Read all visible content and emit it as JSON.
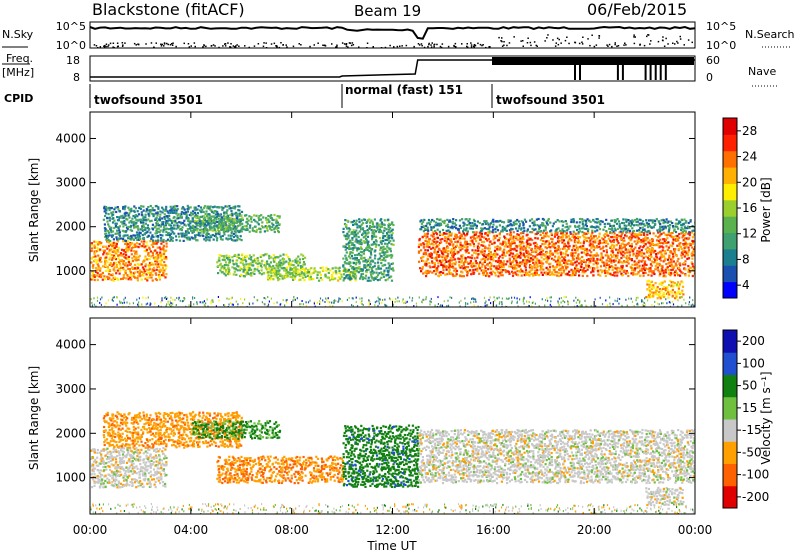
{
  "header": {
    "station": "Blackstone (fitACF)",
    "beam": "Beam 19",
    "date": "06/Feb/2015"
  },
  "aux": {
    "nsky_label": "N.Sky",
    "nsearch_label": "N.Search",
    "freq_label": "Freq.",
    "freq_unit": "[MHz]",
    "nave_label": "Nave",
    "cpid_label": "CPID",
    "noise_ticks": [
      "10^5",
      "10^0"
    ],
    "freq_ticks": [
      "18",
      "8"
    ],
    "nave_ticks": [
      "60",
      "0"
    ],
    "cpid_segments": [
      {
        "label": "twofsound 3501",
        "start": 0,
        "end": 10
      },
      {
        "label": "normal (fast) 151",
        "start": 10,
        "end": 16
      },
      {
        "label": "twofsound 3501",
        "start": 16,
        "end": 24
      }
    ]
  },
  "colorbars": {
    "power": {
      "label": "Power [dB]",
      "ticks": [
        "28",
        "24",
        "20",
        "16",
        "12",
        "8",
        "4"
      ],
      "colors": [
        "#0000ff",
        "#1a50b0",
        "#1b7f8f",
        "#3fa070",
        "#5ab24e",
        "#9bcf2e",
        "#ffee00",
        "#ffb000",
        "#ff7000",
        "#ff2000",
        "#e00000"
      ]
    },
    "velocity": {
      "label": "Velocity [m s⁻¹]",
      "ticks": [
        "200",
        "100",
        "50",
        "15",
        "-15",
        "-50",
        "-100",
        "-200"
      ],
      "colors": [
        "#1010b0",
        "#2050d0",
        "#108010",
        "#70c040",
        "#c8c8c8",
        "#ffa000",
        "#ff6000",
        "#e00000"
      ]
    }
  },
  "chart_data": [
    {
      "type": "heatmap",
      "title": "Power",
      "xlabel": "Time UT",
      "ylabel": "Slant Range [km]",
      "x_ticks": [
        "00:00",
        "04:00",
        "08:00",
        "12:00",
        "16:00",
        "20:00",
        "00:00"
      ],
      "y_ticks": [
        "1000",
        "2000",
        "3000",
        "4000"
      ],
      "xlim_hours": [
        0,
        24
      ],
      "ylim_km": [
        180,
        4600
      ],
      "colorbar_range_db": [
        0,
        32
      ],
      "scatter_bands": [
        {
          "t0": 0.0,
          "t1": 3.0,
          "r0": 800,
          "r1": 1700,
          "level": 24
        },
        {
          "t0": 0.5,
          "t1": 6.0,
          "r0": 1700,
          "r1": 2500,
          "level": 8
        },
        {
          "t0": 4.0,
          "t1": 7.5,
          "r0": 1900,
          "r1": 2300,
          "level": 12
        },
        {
          "t0": 5.0,
          "t1": 8.5,
          "r0": 900,
          "r1": 1400,
          "level": 14
        },
        {
          "t0": 7.0,
          "t1": 10.5,
          "r0": 800,
          "r1": 1100,
          "level": 16
        },
        {
          "t0": 10.0,
          "t1": 12.0,
          "r0": 800,
          "r1": 2200,
          "level": 10
        },
        {
          "t0": 13.0,
          "t1": 24.0,
          "r0": 900,
          "r1": 1900,
          "level": 26
        },
        {
          "t0": 13.0,
          "t1": 24.0,
          "r0": 1900,
          "r1": 2200,
          "level": 8
        },
        {
          "t0": 22.0,
          "t1": 23.5,
          "r0": 400,
          "r1": 800,
          "level": 22
        }
      ]
    },
    {
      "type": "heatmap",
      "title": "Velocity",
      "xlabel": "Time UT",
      "ylabel": "Slant Range [km]",
      "x_ticks": [
        "00:00",
        "04:00",
        "08:00",
        "12:00",
        "16:00",
        "20:00",
        "00:00"
      ],
      "y_ticks": [
        "1000",
        "2000",
        "3000",
        "4000"
      ],
      "xlim_hours": [
        0,
        24
      ],
      "ylim_km": [
        180,
        4600
      ],
      "colorbar_range_ms": [
        -250,
        250
      ],
      "scatter_bands": [
        {
          "t0": 0.0,
          "t1": 3.0,
          "r0": 800,
          "r1": 1700,
          "v": 0
        },
        {
          "t0": 0.5,
          "t1": 6.0,
          "r0": 1700,
          "r1": 2500,
          "v": -40
        },
        {
          "t0": 4.0,
          "t1": 7.5,
          "r0": 1900,
          "r1": 2300,
          "v": 40
        },
        {
          "t0": 5.0,
          "t1": 10.0,
          "r0": 900,
          "r1": 1500,
          "v": -45
        },
        {
          "t0": 10.0,
          "t1": 13.0,
          "r0": 800,
          "r1": 2200,
          "v": 60
        },
        {
          "t0": 13.0,
          "t1": 24.0,
          "r0": 900,
          "r1": 2100,
          "v": 0
        },
        {
          "t0": 22.0,
          "t1": 23.5,
          "r0": 400,
          "r1": 800,
          "v": 0
        }
      ]
    }
  ]
}
